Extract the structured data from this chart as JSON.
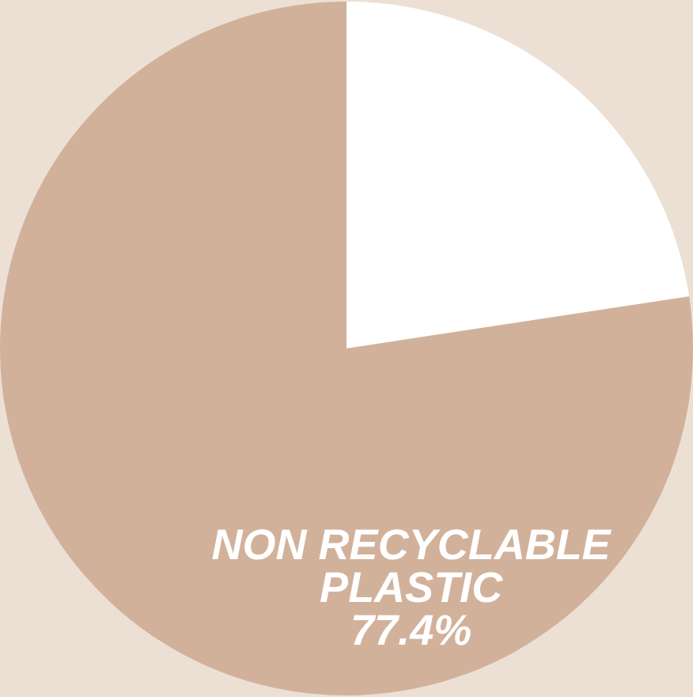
{
  "chart_data": {
    "type": "pie",
    "categories": [
      null,
      "NON RECYCLABLE PLASTIC"
    ],
    "values": [
      22.6,
      77.4
    ],
    "colors": [
      "#ffffff",
      "#d2b19b"
    ],
    "value_labels": [
      null,
      "77.4%"
    ],
    "legend": false
  }
}
